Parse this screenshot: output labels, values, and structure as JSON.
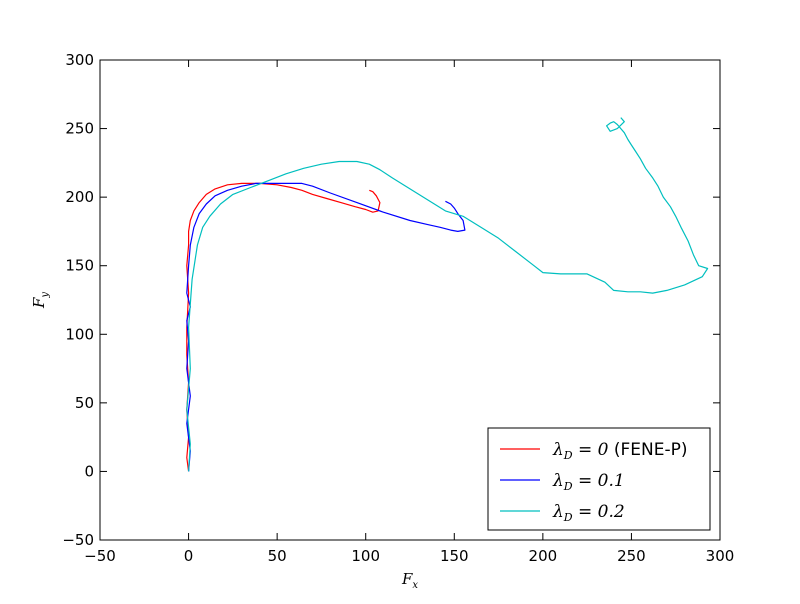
{
  "chart_data": {
    "type": "line",
    "title": "",
    "xlabel": "F_x",
    "ylabel": "F_y",
    "xlim": [
      -50,
      300
    ],
    "ylim": [
      -50,
      300
    ],
    "xticks": [
      -50,
      0,
      50,
      100,
      150,
      200,
      250,
      300
    ],
    "yticks": [
      -50,
      0,
      50,
      100,
      150,
      200,
      250,
      300
    ],
    "xtick_labels": [
      "−50",
      "0",
      "50",
      "100",
      "150",
      "200",
      "250",
      "300"
    ],
    "ytick_labels": [
      "−50",
      "0",
      "50",
      "100",
      "150",
      "200",
      "250",
      "300"
    ],
    "grid": false,
    "legend_position": "lower-right",
    "series": [
      {
        "name": "λ_D = 0 (FENE-P)",
        "legend_math": "λ",
        "legend_sub": "D",
        "legend_rest": " = 0 ",
        "legend_text": "(FENE-P)",
        "color": "#ff0000",
        "x": [
          0,
          -1,
          0,
          -1,
          0,
          -1,
          -1,
          0,
          -1,
          0,
          0,
          1,
          3,
          6,
          10,
          15,
          22,
          30,
          40,
          50,
          58,
          64,
          70,
          78,
          86,
          94,
          100,
          104,
          107,
          108,
          106,
          104,
          102
        ],
        "y": [
          0,
          10,
          25,
          45,
          65,
          85,
          105,
          130,
          150,
          165,
          175,
          183,
          190,
          196,
          202,
          206,
          209,
          210,
          210,
          209,
          207,
          205,
          202,
          199,
          196,
          193,
          191,
          189,
          190,
          196,
          201,
          204,
          205
        ]
      },
      {
        "name": "λ_D = 0.1",
        "legend_math": "λ",
        "legend_sub": "D",
        "legend_rest": " = 0.1",
        "legend_text": "",
        "color": "#0000ff",
        "x": [
          0,
          1,
          -1,
          1,
          -1,
          0,
          -1,
          1,
          -1,
          0,
          1,
          3,
          6,
          10,
          15,
          22,
          30,
          38,
          46,
          55,
          64,
          70,
          80,
          95,
          110,
          125,
          135,
          142,
          148,
          152,
          156,
          155,
          152,
          150,
          148,
          145
        ],
        "y": [
          0,
          15,
          35,
          55,
          75,
          95,
          110,
          120,
          130,
          150,
          165,
          178,
          188,
          195,
          201,
          205,
          208,
          210,
          210,
          210,
          210,
          208,
          203,
          196,
          189,
          183,
          180,
          178,
          176,
          175,
          176,
          183,
          188,
          192,
          195,
          197
        ]
      },
      {
        "name": "λ_D = 0.2",
        "legend_math": "λ",
        "legend_sub": "D",
        "legend_rest": " = 0.2",
        "legend_text": "",
        "color": "#00bfbf",
        "x": [
          0,
          1,
          -1,
          1,
          0,
          2,
          5,
          8,
          12,
          18,
          25,
          35,
          45,
          55,
          65,
          75,
          85,
          95,
          102,
          108,
          115,
          125,
          135,
          145,
          155,
          165,
          175,
          185,
          195,
          200,
          210,
          225,
          235,
          240,
          248,
          255,
          262,
          270,
          280,
          290,
          293,
          288,
          285,
          282,
          278,
          275,
          272,
          268,
          265,
          262,
          258,
          255,
          252,
          250,
          248,
          246,
          244,
          242,
          240,
          238,
          236,
          238,
          242,
          246,
          244
        ],
        "y": [
          0,
          20,
          45,
          75,
          105,
          140,
          165,
          178,
          186,
          195,
          202,
          207,
          212,
          217,
          221,
          224,
          226,
          226,
          224,
          220,
          214,
          206,
          198,
          190,
          186,
          178,
          170,
          160,
          150,
          145,
          144,
          144,
          138,
          132,
          131,
          131,
          130,
          132,
          136,
          142,
          148,
          150,
          158,
          168,
          178,
          186,
          193,
          200,
          208,
          214,
          221,
          228,
          234,
          238,
          242,
          247,
          250,
          253,
          255,
          254,
          252,
          248,
          250,
          255,
          258
        ]
      }
    ]
  }
}
